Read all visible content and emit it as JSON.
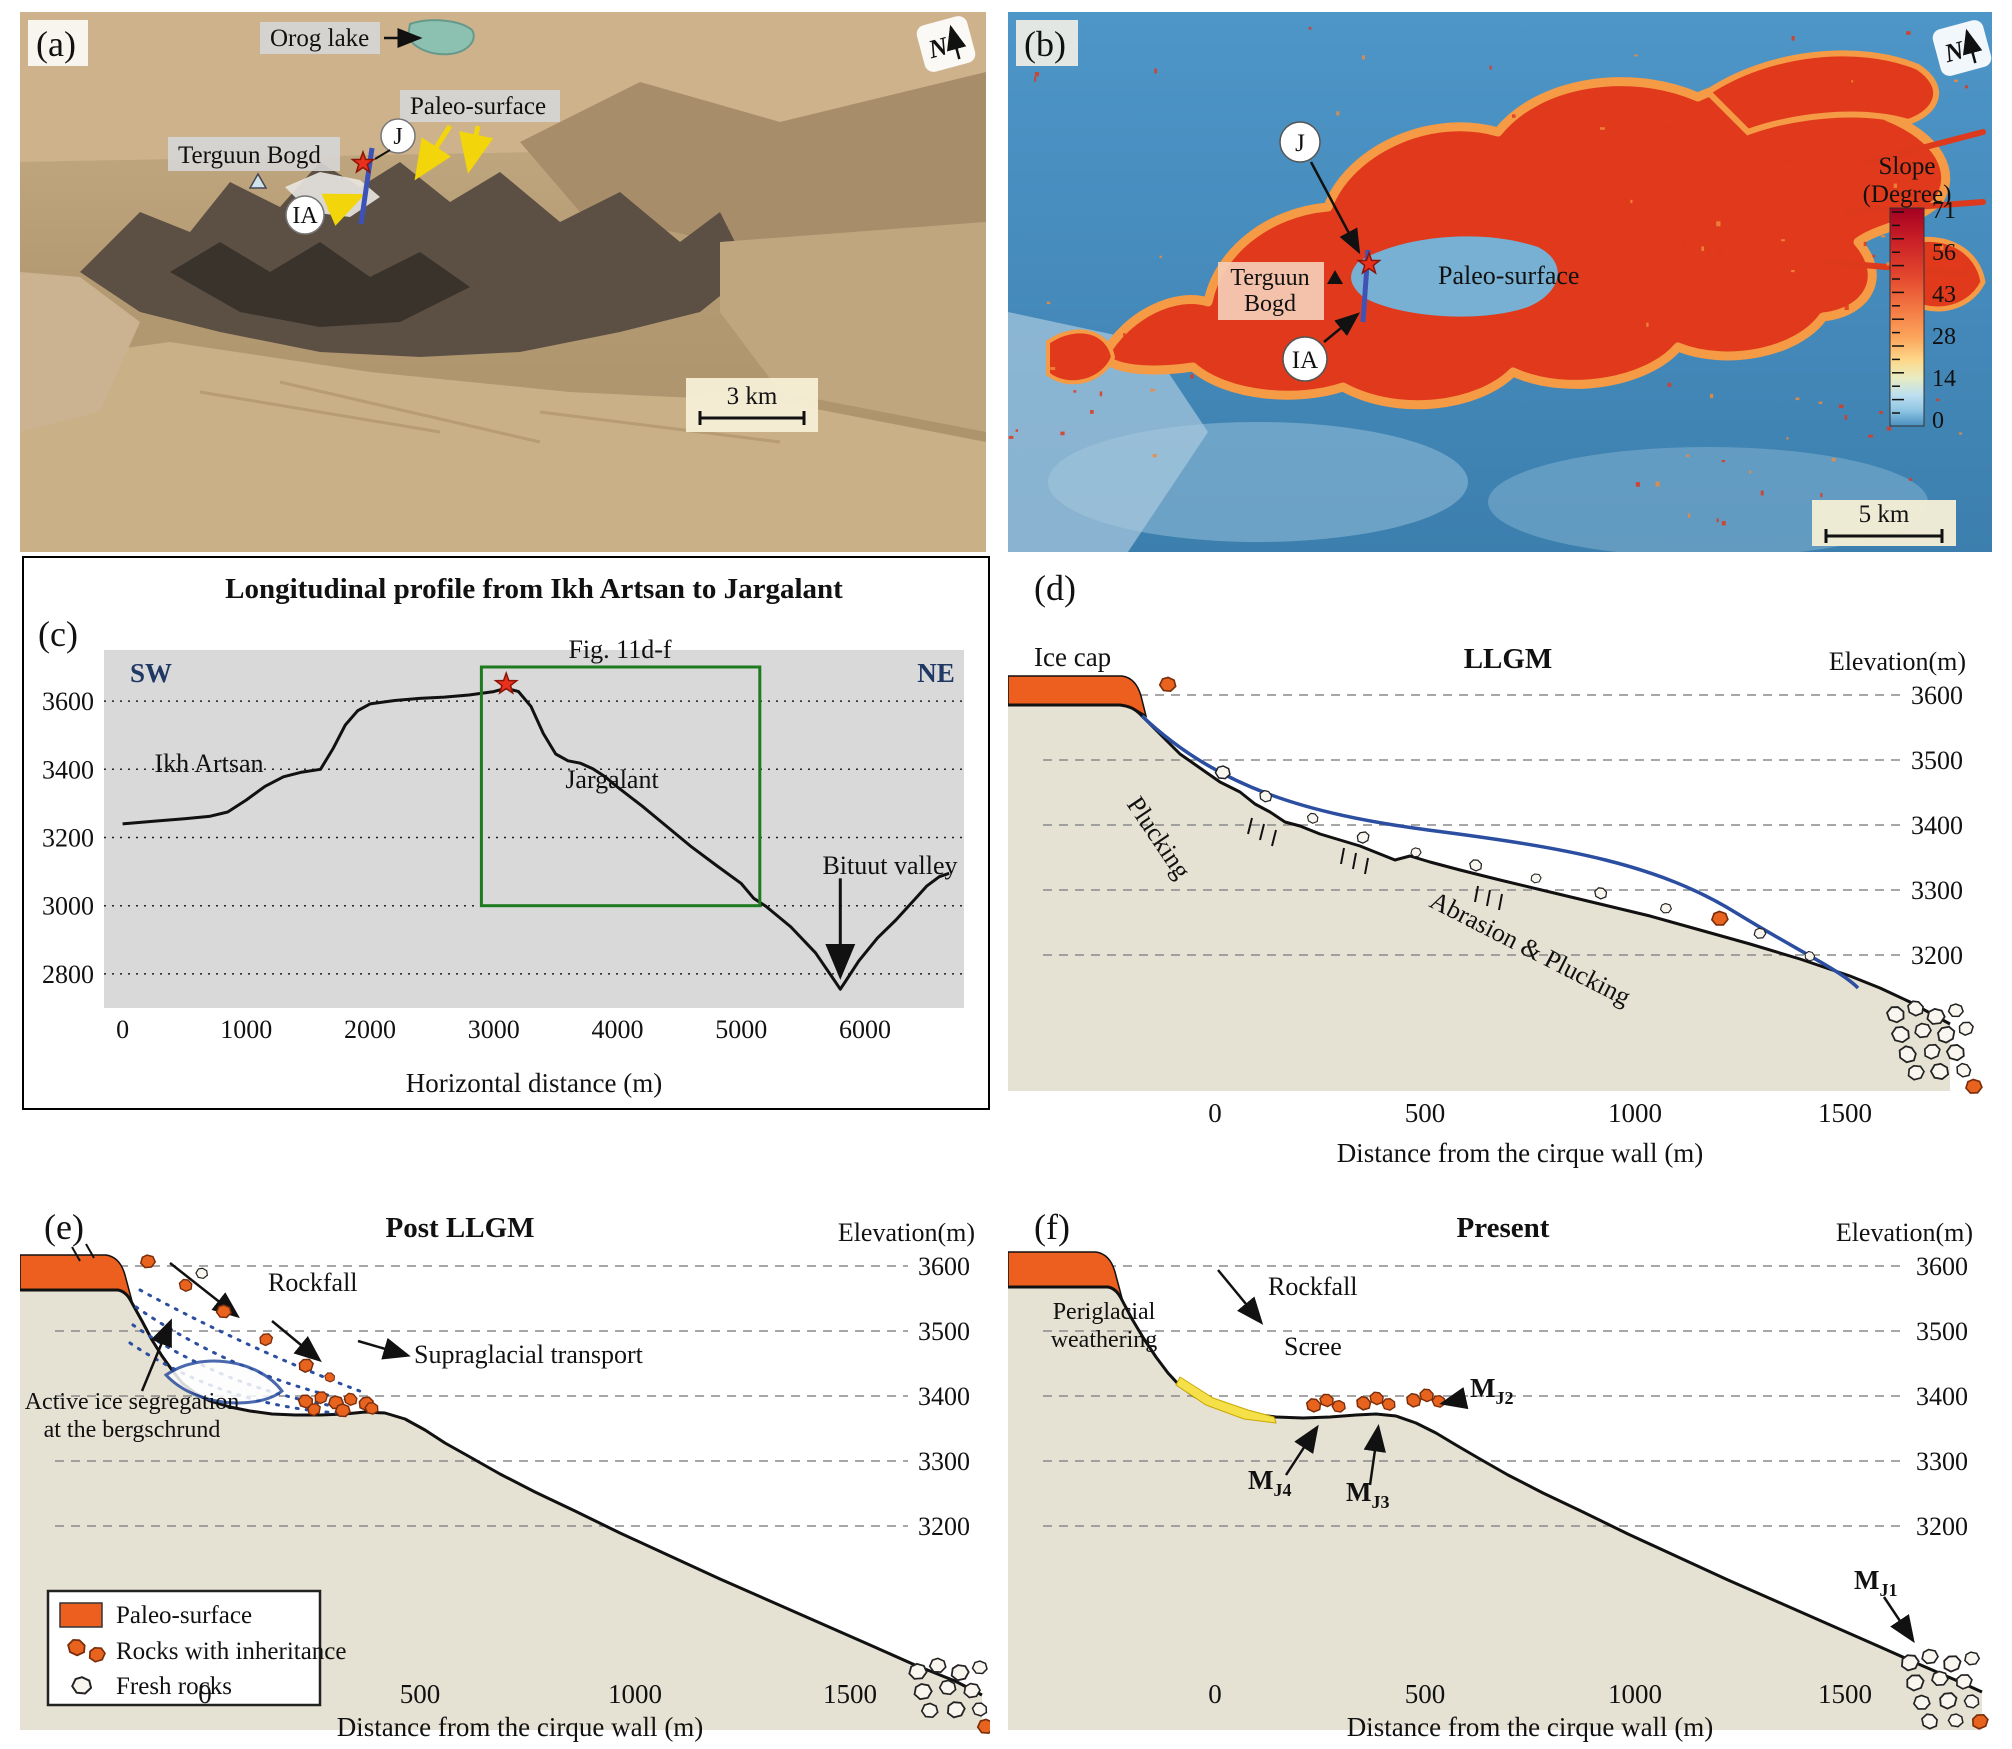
{
  "colors": {
    "paleo_orange": "#ED5F1E",
    "ice_blue": "#2B4EA0",
    "scree_yellow": "#F6E049",
    "terrain_beige": "#E5E1D3",
    "slope_red": "#DD3A1D",
    "slope_blue": "#4A8FC0",
    "chart_bg": "#D9D9D9",
    "fig_box_green": "#1E7A1E",
    "star_red": "#E8301C"
  },
  "panels": {
    "a": {
      "tag": "(a)",
      "orog_lake": "Orog lake",
      "paleo_surface": "Paleo-surface",
      "terguun_bogd": "Terguun Bogd",
      "j": "J",
      "ia": "IA",
      "scale_bar": "3 km",
      "north": "N"
    },
    "b": {
      "tag": "(b)",
      "j": "J",
      "ia": "IA",
      "terguun_line1": "Terguun",
      "terguun_line2": "Bogd",
      "paleo_surface": "Paleo-surface",
      "scale_bar": "5 km",
      "north": "N",
      "colorbar": {
        "title_line1": "Slope",
        "title_line2": "(Degree)",
        "ticks": [
          "71",
          "56",
          "43",
          "28",
          "14",
          "0"
        ]
      }
    },
    "c": {
      "tag": "(c)"
    },
    "d": {
      "tag": "(d)",
      "title": "LLGM",
      "ice_cap": "Ice cap",
      "plucking": "Plucking",
      "abrasion": "Abrasion & Plucking",
      "elevation_label": "Elevation(m)",
      "x_label": "Distance from the cirque wall (m)",
      "y_ticks": [
        "3600",
        "3500",
        "3400",
        "3300",
        "3200"
      ],
      "x_ticks": [
        "0",
        "500",
        "1000",
        "1500"
      ]
    },
    "e": {
      "tag": "(e)",
      "title": "Post LLGM",
      "rockfall": "Rockfall",
      "supraglacial": "Supraglacial transport",
      "segregation_line1": "Active ice segregation",
      "segregation_line2": "at the bergschrund",
      "elevation_label": "Elevation(m)",
      "x_label": "Distance from the cirque wall (m)",
      "y_ticks": [
        "3600",
        "3500",
        "3400",
        "3300",
        "3200"
      ],
      "x_ticks": [
        "0",
        "500",
        "1000",
        "1500"
      ],
      "legend": {
        "paleo": "Paleo-surface",
        "inheritance": "Rocks with inheritance",
        "fresh": "Fresh rocks"
      }
    },
    "f": {
      "tag": "(f)",
      "title": "Present",
      "periglacial_line1": "Periglacial",
      "periglacial_line2": "weathering",
      "rockfall": "Rockfall",
      "scree": "Scree",
      "elevation_label": "Elevation(m)",
      "x_label": "Distance from the cirque wall (m)",
      "y_ticks": [
        "3600",
        "3500",
        "3400",
        "3300",
        "3200"
      ],
      "x_ticks": [
        "0",
        "500",
        "1000",
        "1500"
      ],
      "moraines": {
        "mj1_main": "M",
        "mj1_sub": "J1",
        "mj2_main": "M",
        "mj2_sub": "J2",
        "mj3_main": "M",
        "mj3_sub": "J3",
        "mj4_main": "M",
        "mj4_sub": "J4"
      }
    }
  },
  "chart_data": {
    "type": "line",
    "title": "Longitudinal profile from Ikh Artsan to Jargalant",
    "xlabel": "Horizontal distance (m)",
    "ylabel": "",
    "direction_left": "SW",
    "direction_right": "NE",
    "x_ticks": [
      0,
      1000,
      2000,
      3000,
      4000,
      5000,
      6000
    ],
    "y_ticks": [
      3600,
      3400,
      3200,
      3000,
      2800
    ],
    "xlim": [
      -150,
      6800
    ],
    "ylim": [
      2700,
      3750
    ],
    "grid": "dotted-horizontal",
    "annotations": {
      "left_summit": "Ikh Artsan",
      "right_summit": "Jargalant",
      "valley": "Bituut valley",
      "inset_box_label": "Fig. 11d-f"
    },
    "inset_box": {
      "x0": 2900,
      "x1": 5150,
      "y0": 3000,
      "y1": 3700
    },
    "star": {
      "x": 3100,
      "y": 3650
    },
    "valley_arrow": {
      "x": 5800,
      "y_top": 3080,
      "y_bottom": 2800
    },
    "profile": [
      [
        0,
        3240
      ],
      [
        250,
        3248
      ],
      [
        500,
        3255
      ],
      [
        700,
        3262
      ],
      [
        850,
        3275
      ],
      [
        1000,
        3310
      ],
      [
        1150,
        3350
      ],
      [
        1300,
        3378
      ],
      [
        1450,
        3392
      ],
      [
        1600,
        3400
      ],
      [
        1700,
        3460
      ],
      [
        1800,
        3530
      ],
      [
        1900,
        3572
      ],
      [
        2000,
        3592
      ],
      [
        2200,
        3602
      ],
      [
        2400,
        3608
      ],
      [
        2600,
        3612
      ],
      [
        2800,
        3618
      ],
      [
        3000,
        3628
      ],
      [
        3100,
        3638
      ],
      [
        3200,
        3628
      ],
      [
        3300,
        3585
      ],
      [
        3400,
        3505
      ],
      [
        3500,
        3445
      ],
      [
        3600,
        3425
      ],
      [
        3700,
        3418
      ],
      [
        3800,
        3402
      ],
      [
        3900,
        3378
      ],
      [
        4000,
        3348
      ],
      [
        4200,
        3292
      ],
      [
        4400,
        3232
      ],
      [
        4600,
        3172
      ],
      [
        4800,
        3118
      ],
      [
        5000,
        3065
      ],
      [
        5100,
        3022
      ],
      [
        5200,
        2998
      ],
      [
        5400,
        2938
      ],
      [
        5600,
        2862
      ],
      [
        5750,
        2782
      ],
      [
        5800,
        2755
      ],
      [
        5850,
        2782
      ],
      [
        5950,
        2838
      ],
      [
        6100,
        2905
      ],
      [
        6250,
        2958
      ],
      [
        6400,
        3018
      ],
      [
        6500,
        3058
      ],
      [
        6600,
        3085
      ],
      [
        6680,
        3095
      ]
    ]
  }
}
